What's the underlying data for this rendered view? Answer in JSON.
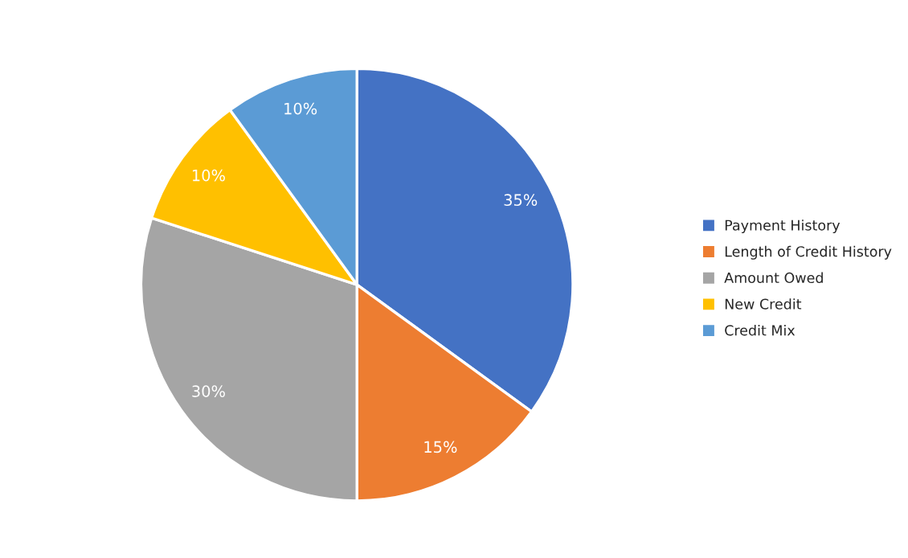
{
  "chart_data": {
    "type": "pie",
    "categories": [
      "Payment History",
      "Length of Credit History",
      "Amount Owed",
      "New Credit",
      "Credit Mix"
    ],
    "values": [
      35,
      15,
      30,
      10,
      10
    ],
    "colors": [
      "#4472c4",
      "#ed7d31",
      "#a5a5a5",
      "#ffc000",
      "#5b9bd5"
    ],
    "value_labels": [
      "35%",
      "15%",
      "30%",
      "10%",
      "10%"
    ],
    "legend": "right"
  }
}
